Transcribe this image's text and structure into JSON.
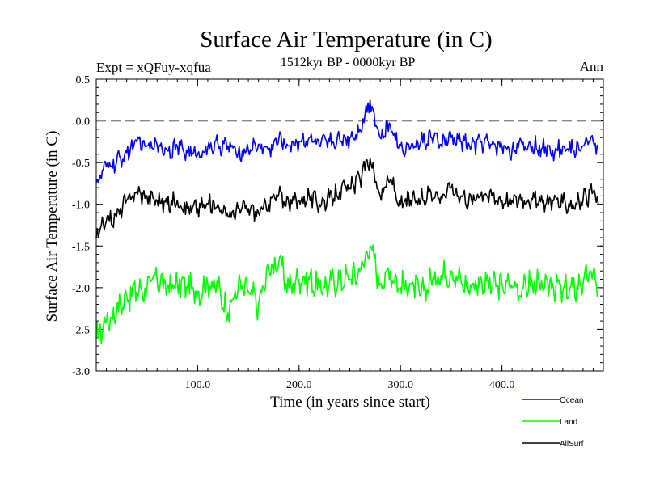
{
  "chart_data": {
    "type": "line",
    "title": "Surface Air Temperature (in C)",
    "subtitle": "1512kyr BP - 0000kyr BP",
    "expt_label": "Expt = xQFuy-xqfua",
    "period_label": "Ann",
    "xlabel": "Time (in years since start)",
    "ylabel": "Surface Air Temperature (in C)",
    "xlim": [
      0,
      500
    ],
    "ylim": [
      -3.0,
      0.5
    ],
    "x_ticks": [
      {
        "value": 100,
        "label": "100.0"
      },
      {
        "value": 200,
        "label": "200.0"
      },
      {
        "value": 300,
        "label": "300.0"
      },
      {
        "value": 400,
        "label": "400.0"
      }
    ],
    "y_ticks": [
      {
        "value": 0.5,
        "label": "0.5"
      },
      {
        "value": 0.0,
        "label": "0.0"
      },
      {
        "value": -0.5,
        "label": "-0.5"
      },
      {
        "value": -1.0,
        "label": "-1.0"
      },
      {
        "value": -1.5,
        "label": "-1.5"
      },
      {
        "value": -2.0,
        "label": "-2.0"
      },
      {
        "value": -2.5,
        "label": "-2.5"
      },
      {
        "value": -3.0,
        "label": "-3.0"
      }
    ],
    "reference_line": 0.0,
    "series": [
      {
        "name": "Ocean",
        "color": "#0000ff",
        "x": [
          0,
          10,
          20,
          30,
          40,
          50,
          60,
          70,
          80,
          90,
          100,
          110,
          120,
          130,
          140,
          150,
          160,
          170,
          180,
          190,
          200,
          210,
          220,
          230,
          240,
          250,
          260,
          270,
          280,
          290,
          300,
          310,
          320,
          330,
          340,
          350,
          360,
          370,
          380,
          390,
          400,
          410,
          420,
          430,
          440,
          450,
          460,
          470,
          480,
          490,
          495
        ],
        "values": [
          -0.75,
          -0.55,
          -0.5,
          -0.38,
          -0.25,
          -0.3,
          -0.28,
          -0.35,
          -0.3,
          -0.38,
          -0.4,
          -0.32,
          -0.28,
          -0.3,
          -0.38,
          -0.35,
          -0.28,
          -0.35,
          -0.22,
          -0.3,
          -0.25,
          -0.2,
          -0.3,
          -0.25,
          -0.22,
          -0.2,
          -0.1,
          0.25,
          -0.2,
          -0.05,
          -0.3,
          -0.32,
          -0.25,
          -0.2,
          -0.28,
          -0.2,
          -0.25,
          -0.3,
          -0.25,
          -0.28,
          -0.3,
          -0.35,
          -0.28,
          -0.3,
          -0.32,
          -0.35,
          -0.3,
          -0.35,
          -0.3,
          -0.25,
          -0.3
        ]
      },
      {
        "name": "Land",
        "color": "#00ff00",
        "x": [
          0,
          10,
          20,
          30,
          40,
          50,
          60,
          70,
          80,
          90,
          100,
          110,
          120,
          130,
          140,
          150,
          160,
          170,
          180,
          190,
          200,
          210,
          220,
          230,
          240,
          250,
          260,
          270,
          280,
          290,
          300,
          310,
          320,
          330,
          340,
          350,
          360,
          370,
          380,
          390,
          400,
          410,
          420,
          430,
          440,
          450,
          460,
          470,
          480,
          490,
          495
        ],
        "values": [
          -2.6,
          -2.4,
          -2.3,
          -2.1,
          -2.05,
          -2.0,
          -1.9,
          -2.0,
          -1.95,
          -2.0,
          -2.05,
          -1.95,
          -2.0,
          -2.3,
          -2.0,
          -2.05,
          -2.2,
          -1.8,
          -1.7,
          -2.0,
          -1.9,
          -1.9,
          -2.0,
          -1.95,
          -1.9,
          -1.9,
          -1.8,
          -1.5,
          -1.95,
          -1.8,
          -2.0,
          -1.95,
          -2.1,
          -1.9,
          -1.85,
          -1.8,
          -1.95,
          -2.0,
          -1.9,
          -2.0,
          -1.95,
          -2.0,
          -2.0,
          -1.95,
          -2.0,
          -1.95,
          -2.05,
          -2.0,
          -1.95,
          -1.8,
          -2.1
        ]
      },
      {
        "name": "AllSurf",
        "color": "#000000",
        "x": [
          0,
          10,
          20,
          30,
          40,
          50,
          60,
          70,
          80,
          90,
          100,
          110,
          120,
          130,
          140,
          150,
          160,
          170,
          180,
          190,
          200,
          210,
          220,
          230,
          240,
          250,
          260,
          270,
          280,
          290,
          300,
          310,
          320,
          330,
          340,
          350,
          360,
          370,
          380,
          390,
          400,
          410,
          420,
          430,
          440,
          450,
          460,
          470,
          480,
          490,
          495
        ],
        "values": [
          -1.4,
          -1.2,
          -1.15,
          -0.95,
          -0.85,
          -0.9,
          -0.95,
          -1.0,
          -0.95,
          -1.05,
          -1.05,
          -1.0,
          -1.0,
          -1.15,
          -1.05,
          -1.05,
          -1.1,
          -1.0,
          -0.88,
          -1.0,
          -0.95,
          -0.9,
          -1.0,
          -0.92,
          -0.85,
          -0.8,
          -0.7,
          -0.45,
          -0.9,
          -0.7,
          -1.0,
          -0.95,
          -0.95,
          -0.85,
          -0.9,
          -0.8,
          -0.9,
          -0.95,
          -0.85,
          -0.9,
          -0.95,
          -0.95,
          -0.92,
          -0.95,
          -0.98,
          -0.95,
          -0.98,
          -1.0,
          -0.95,
          -0.85,
          -1.0
        ]
      }
    ],
    "legend": [
      {
        "name": "Ocean",
        "color": "#0000ff"
      },
      {
        "name": "Land",
        "color": "#00ff00"
      },
      {
        "name": "AllSurf",
        "color": "#000000"
      }
    ]
  }
}
